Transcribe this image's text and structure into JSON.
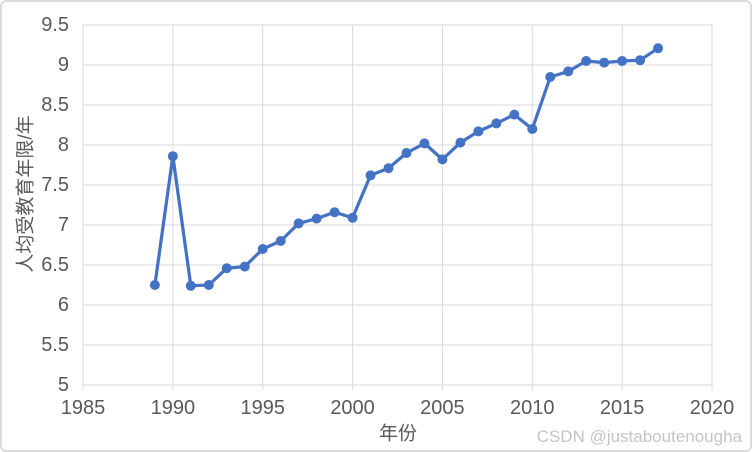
{
  "watermark": {
    "text": "CSDN @justaboutenougha"
  },
  "colors": {
    "series": "#4472C4",
    "gridline": "#D9D9D9",
    "tick_text": "#595959",
    "axis_title_text": "#595959",
    "watermark_text": "#C4C4C4",
    "chart_border": "#DCDCDC",
    "background": "#FFFFFF"
  },
  "chart_data": {
    "type": "line",
    "title": "",
    "xlabel": "年份",
    "ylabel": "人均受教育年限/年",
    "x": [
      1989,
      1990,
      1991,
      1992,
      1993,
      1994,
      1995,
      1996,
      1997,
      1998,
      1999,
      2000,
      2001,
      2002,
      2003,
      2004,
      2005,
      2006,
      2007,
      2008,
      2009,
      2010,
      2011,
      2012,
      2013,
      2014,
      2015,
      2016,
      2017
    ],
    "values": [
      6.25,
      7.86,
      6.24,
      6.25,
      6.46,
      6.48,
      6.7,
      6.8,
      7.02,
      7.08,
      7.16,
      7.09,
      7.62,
      7.71,
      7.9,
      8.02,
      7.82,
      8.03,
      8.17,
      8.27,
      8.38,
      8.2,
      8.85,
      8.92,
      9.05,
      9.03,
      9.05,
      9.06,
      9.21
    ],
    "xlim": [
      1985,
      2020
    ],
    "ylim": [
      5,
      9.5
    ],
    "x_ticks": [
      1985,
      1990,
      1995,
      2000,
      2005,
      2010,
      2015,
      2020
    ],
    "y_ticks": [
      9.5,
      9,
      8.5,
      8,
      7.5,
      7,
      6.5,
      6,
      5.5,
      5
    ],
    "grid": true,
    "legend_position": "none",
    "marker": "circle",
    "marker_radius": 5,
    "line_width": 3.25
  }
}
